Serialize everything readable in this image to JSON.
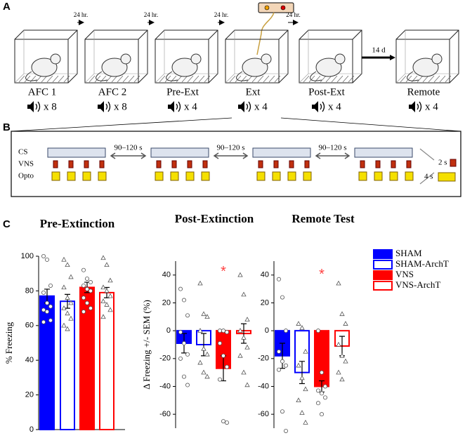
{
  "panel_labels": [
    "A",
    "B",
    "C"
  ],
  "panel_a": {
    "sessions": [
      {
        "name": "AFC 1",
        "tones": "x 8"
      },
      {
        "name": "AFC 2",
        "tones": "x 8"
      },
      {
        "name": "Pre-Ext",
        "tones": "x 4"
      },
      {
        "name": "Ext",
        "tones": "x 4"
      },
      {
        "name": "Post-Ext",
        "tones": "x 4"
      },
      {
        "name": "Remote",
        "tones": "x 4"
      }
    ],
    "intervals": [
      "24 hr.",
      "24 hr.",
      "24 hr.",
      "24 hr.",
      "14 d"
    ]
  },
  "panel_b": {
    "rows": [
      "CS",
      "VNS",
      "Opto"
    ],
    "gaps": [
      "90–120 s",
      "90–120 s",
      "90–120 s"
    ],
    "key": [
      "2 s",
      "4 s"
    ]
  },
  "legend": [
    {
      "name": "SHAM",
      "color": "#0000ff",
      "filled": true,
      "marker": "circle"
    },
    {
      "name": "SHAM-ArchT",
      "color": "#0000ff",
      "filled": false,
      "marker": "triangle"
    },
    {
      "name": "VNS",
      "color": "#ff0000",
      "filled": true,
      "marker": "circle"
    },
    {
      "name": "VNS-ArchT",
      "color": "#ff0000",
      "filled": false,
      "marker": "triangle"
    }
  ],
  "chart_data": [
    {
      "type": "bar",
      "title": "Pre-Extinction",
      "ylabel": "% Freezing",
      "ylim": [
        0,
        100
      ],
      "yticks": [
        0,
        20,
        40,
        60,
        80,
        100
      ],
      "values": [
        77,
        74,
        82,
        79
      ],
      "errors": [
        4,
        4,
        3,
        3
      ],
      "points": [
        [
          100,
          98,
          83,
          79,
          73,
          71,
          69,
          68,
          63,
          62
        ],
        [
          98,
          95,
          88,
          82,
          76,
          73,
          70,
          67,
          64,
          60,
          58
        ],
        [
          92,
          87,
          85,
          83,
          81,
          80,
          76,
          73,
          70,
          68
        ],
        [
          99,
          95,
          86,
          82,
          80,
          77,
          74,
          72,
          69,
          65
        ]
      ],
      "annotations": []
    },
    {
      "type": "bar",
      "title": "Post-Extinction",
      "ylabel": "Δ Freezing +/- SEM (%)",
      "ylim": [
        -70,
        50
      ],
      "yticks": [
        -60,
        -40,
        -20,
        0,
        20,
        40
      ],
      "values": [
        -9,
        -10,
        -27,
        -2
      ],
      "errors": [
        7,
        8,
        9,
        7
      ],
      "points": [
        [
          30,
          22,
          11,
          -1,
          -9,
          -17,
          -20,
          -33,
          -39
        ],
        [
          34,
          12,
          10,
          0,
          -13,
          -17,
          -23,
          -30,
          -33
        ],
        [
          0,
          0,
          -1,
          -9,
          -18,
          -26,
          -35,
          -65,
          -66
        ],
        [
          40,
          26,
          8,
          0,
          -5,
          -12,
          -18,
          -30,
          -39
        ]
      ],
      "annotations": [
        {
          "text": "*",
          "category": 2,
          "y": 44
        }
      ]
    },
    {
      "type": "bar",
      "title": "Remote Test",
      "ylim": [
        -70,
        50
      ],
      "yticks": [
        -60,
        -40,
        -20,
        0,
        20,
        40
      ],
      "values": [
        -18,
        -30,
        -40,
        -11
      ],
      "errors": [
        9,
        8,
        4,
        7
      ],
      "points": [
        [
          37,
          24,
          0,
          -15,
          -22,
          -25,
          -28,
          -58,
          -72
        ],
        [
          5,
          2,
          -15,
          -25,
          -34,
          -42,
          -50,
          -59,
          -66
        ],
        [
          0,
          -30,
          -40,
          -43,
          -45,
          -48,
          -52,
          -60
        ],
        [
          34,
          12,
          5,
          -10,
          -18,
          -22,
          -30,
          -35
        ]
      ],
      "annotations": [
        {
          "text": "*",
          "category": 2,
          "y": 42
        }
      ]
    }
  ]
}
